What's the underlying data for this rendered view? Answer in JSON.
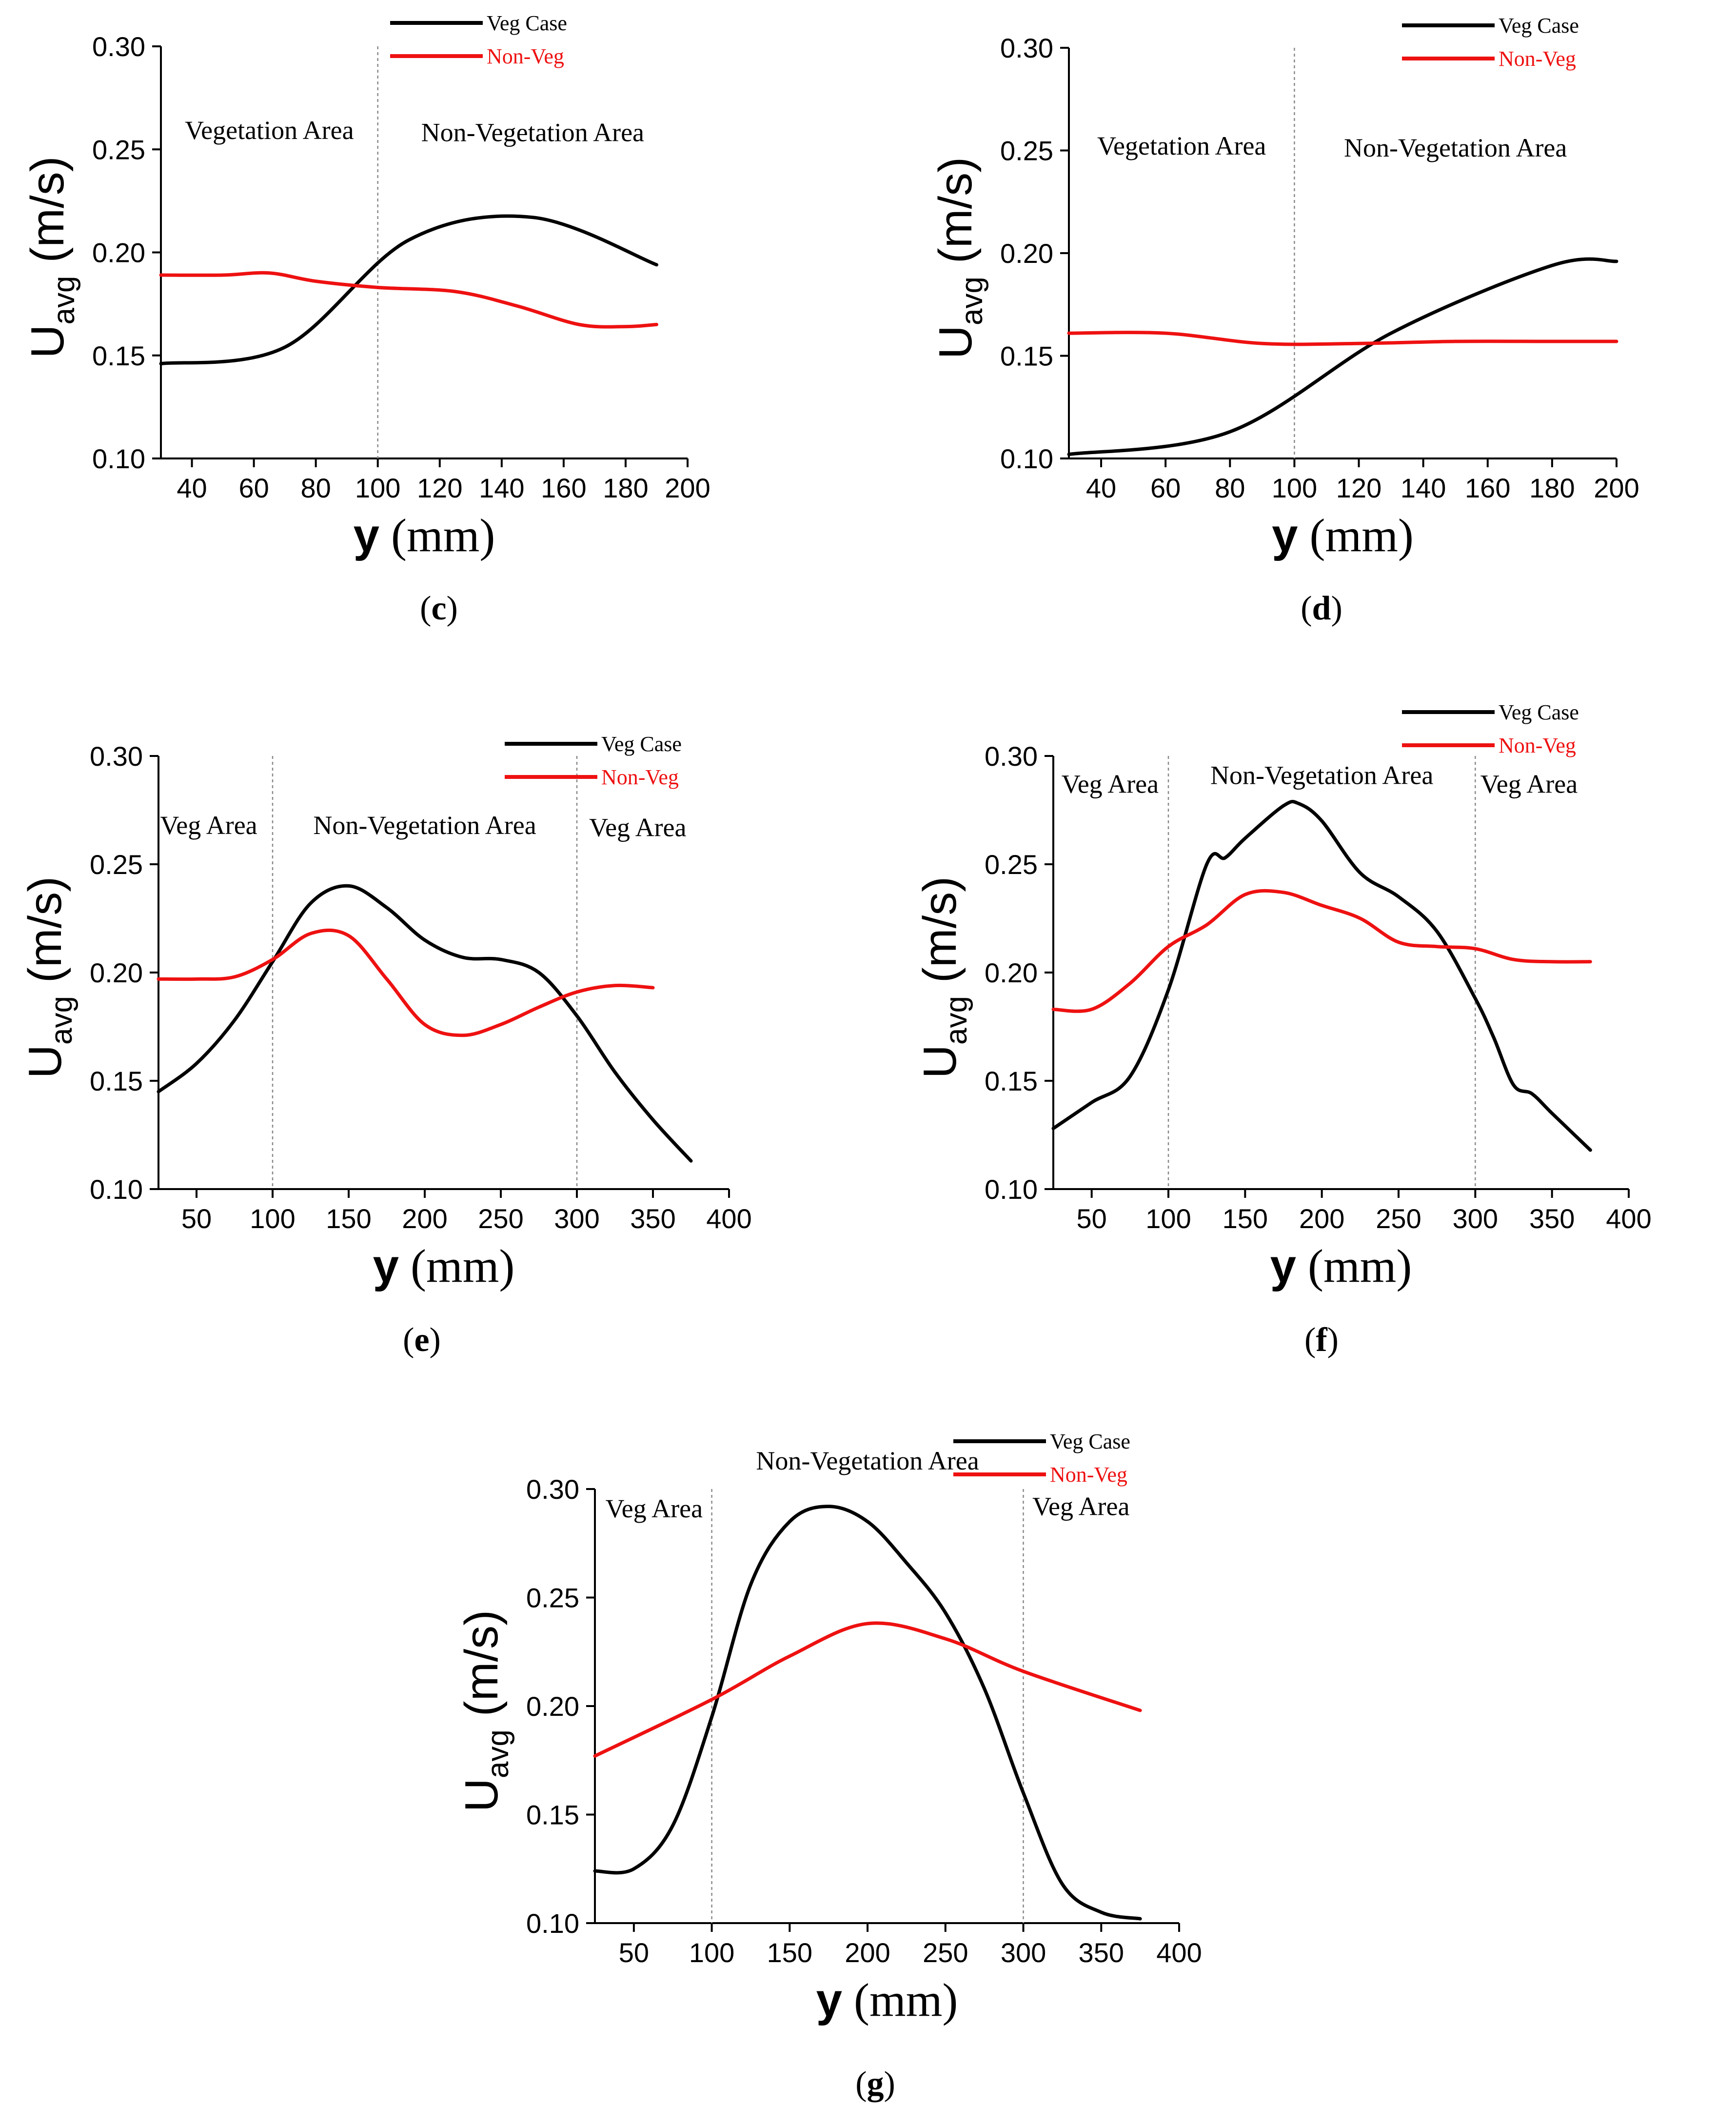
{
  "series_styles": {
    "Veg Case": "#000000",
    "Non-Veg": "#ee1111"
  },
  "chart_data": [
    {
      "type": "line",
      "panel_label": "c",
      "xlabel": "y (mm)",
      "ylabel": "Uavg (m/s)",
      "xlim": [
        30,
        200
      ],
      "ylim": [
        0.1,
        0.3
      ],
      "xticks": [
        40,
        60,
        80,
        100,
        120,
        140,
        160,
        180,
        200
      ],
      "yticks": [
        0.1,
        0.15,
        0.2,
        0.25,
        0.3
      ],
      "grid": false,
      "legend_position": "top-right",
      "dividers": [
        100
      ],
      "regions": [
        {
          "label": "Vegetation Area",
          "x": 65,
          "y": 0.255
        },
        {
          "label": "Non-Vegetation Area",
          "x": 150,
          "y": 0.254
        }
      ],
      "series": [
        {
          "name": "Veg Case",
          "x": [
            30,
            70,
            110,
            150,
            190
          ],
          "y": [
            0.146,
            0.154,
            0.206,
            0.217,
            0.194
          ]
        },
        {
          "name": "Non-Veg",
          "x": [
            30,
            50,
            65,
            80,
            100,
            125,
            145,
            165,
            180,
            190
          ],
          "y": [
            0.189,
            0.189,
            0.19,
            0.186,
            0.183,
            0.181,
            0.174,
            0.165,
            0.164,
            0.165
          ]
        }
      ]
    },
    {
      "type": "line",
      "panel_label": "d",
      "xlabel": "y (mm)",
      "ylabel": "Uavg (m/s)",
      "xlim": [
        30,
        200
      ],
      "ylim": [
        0.1,
        0.3
      ],
      "xticks": [
        40,
        60,
        80,
        100,
        120,
        140,
        160,
        180,
        200
      ],
      "yticks": [
        0.1,
        0.15,
        0.2,
        0.25,
        0.3
      ],
      "grid": false,
      "legend_position": "top-right",
      "dividers": [
        100
      ],
      "regions": [
        {
          "label": "Vegetation Area",
          "x": 65,
          "y": 0.248
        },
        {
          "label": "Non-Vegetation Area",
          "x": 150,
          "y": 0.247
        }
      ],
      "series": [
        {
          "name": "Veg Case",
          "x": [
            30,
            80,
            130,
            180,
            200
          ],
          "y": [
            0.102,
            0.113,
            0.161,
            0.194,
            0.196
          ]
        },
        {
          "name": "Non-Veg",
          "x": [
            30,
            60,
            90,
            120,
            150,
            180,
            200
          ],
          "y": [
            0.161,
            0.161,
            0.156,
            0.156,
            0.157,
            0.157,
            0.157
          ]
        }
      ]
    },
    {
      "type": "line",
      "panel_label": "e",
      "xlabel": "y (mm)",
      "ylabel": "Uavg (m/s)",
      "xlim": [
        25,
        400
      ],
      "ylim": [
        0.1,
        0.3
      ],
      "xticks": [
        50,
        100,
        150,
        200,
        250,
        300,
        350,
        400
      ],
      "yticks": [
        0.1,
        0.15,
        0.2,
        0.25,
        0.3
      ],
      "grid": false,
      "legend_position": "top-right",
      "dividers": [
        100,
        300
      ],
      "regions": [
        {
          "label": "Veg Area",
          "x": 58,
          "y": 0.264
        },
        {
          "label": "Non-Vegetation Area",
          "x": 200,
          "y": 0.264
        },
        {
          "label": "Veg Area",
          "x": 340,
          "y": 0.263
        }
      ],
      "series": [
        {
          "name": "Veg Case",
          "x": [
            25,
            50,
            75,
            100,
            125,
            150,
            175,
            200,
            225,
            250,
            275,
            300,
            325,
            350,
            375
          ],
          "y": [
            0.145,
            0.158,
            0.178,
            0.205,
            0.232,
            0.24,
            0.23,
            0.215,
            0.207,
            0.206,
            0.2,
            0.18,
            0.154,
            0.132,
            0.113
          ]
        },
        {
          "name": "Non-Veg",
          "x": [
            25,
            50,
            75,
            100,
            125,
            150,
            175,
            200,
            225,
            250,
            275,
            300,
            325,
            350
          ],
          "y": [
            0.197,
            0.197,
            0.198,
            0.206,
            0.218,
            0.217,
            0.197,
            0.176,
            0.171,
            0.176,
            0.184,
            0.191,
            0.194,
            0.193
          ]
        }
      ]
    },
    {
      "type": "line",
      "panel_label": "f",
      "xlabel": "y (mm)",
      "ylabel": "Uavg (m/s)",
      "xlim": [
        25,
        400
      ],
      "ylim": [
        0.1,
        0.3
      ],
      "xticks": [
        50,
        100,
        150,
        200,
        250,
        300,
        350,
        400
      ],
      "yticks": [
        0.1,
        0.15,
        0.2,
        0.25,
        0.3
      ],
      "grid": false,
      "legend_position": "top-right",
      "dividers": [
        100,
        300
      ],
      "regions": [
        {
          "label": "Veg Area",
          "x": 62,
          "y": 0.283
        },
        {
          "label": "Non-Vegetation Area",
          "x": 200,
          "y": 0.287
        },
        {
          "label": "Veg Area",
          "x": 335,
          "y": 0.283
        }
      ],
      "series": [
        {
          "name": "Veg Case",
          "x": [
            25,
            50,
            75,
            100,
            125,
            137,
            150,
            175,
            185,
            200,
            225,
            250,
            275,
            300,
            312,
            325,
            337,
            350,
            375
          ],
          "y": [
            0.128,
            0.14,
            0.152,
            0.192,
            0.25,
            0.253,
            0.262,
            0.277,
            0.278,
            0.27,
            0.246,
            0.235,
            0.219,
            0.188,
            0.17,
            0.148,
            0.144,
            0.135,
            0.118
          ]
        },
        {
          "name": "Non-Veg",
          "x": [
            25,
            50,
            75,
            100,
            125,
            150,
            175,
            200,
            225,
            250,
            275,
            300,
            325,
            350,
            375
          ],
          "y": [
            0.183,
            0.183,
            0.195,
            0.212,
            0.222,
            0.236,
            0.237,
            0.231,
            0.225,
            0.214,
            0.212,
            0.211,
            0.206,
            0.205,
            0.205
          ]
        }
      ]
    },
    {
      "type": "line",
      "panel_label": "g",
      "xlabel": "y (mm)",
      "ylabel": "Uavg (m/s)",
      "xlim": [
        25,
        400
      ],
      "ylim": [
        0.1,
        0.3
      ],
      "xticks": [
        50,
        100,
        150,
        200,
        250,
        300,
        350,
        400
      ],
      "yticks": [
        0.1,
        0.15,
        0.2,
        0.25,
        0.3
      ],
      "grid": false,
      "legend_position": "top-right",
      "dividers": [
        100,
        300
      ],
      "regions": [
        {
          "label": "Veg Area",
          "x": 63,
          "y": 0.287
        },
        {
          "label": "Non-Vegetation Area",
          "x": 200,
          "y": 0.309
        },
        {
          "label": "Veg Area",
          "x": 337,
          "y": 0.288
        }
      ],
      "series": [
        {
          "name": "Veg Case",
          "x": [
            25,
            50,
            75,
            100,
            125,
            150,
            175,
            200,
            225,
            250,
            275,
            300,
            325,
            350,
            375
          ],
          "y": [
            0.124,
            0.125,
            0.145,
            0.195,
            0.256,
            0.285,
            0.292,
            0.285,
            0.266,
            0.243,
            0.208,
            0.16,
            0.118,
            0.105,
            0.102
          ]
        },
        {
          "name": "Non-Veg",
          "x": [
            25,
            100,
            150,
            200,
            250,
            300,
            375
          ],
          "y": [
            0.177,
            0.203,
            0.223,
            0.238,
            0.231,
            0.216,
            0.198
          ]
        }
      ]
    }
  ]
}
